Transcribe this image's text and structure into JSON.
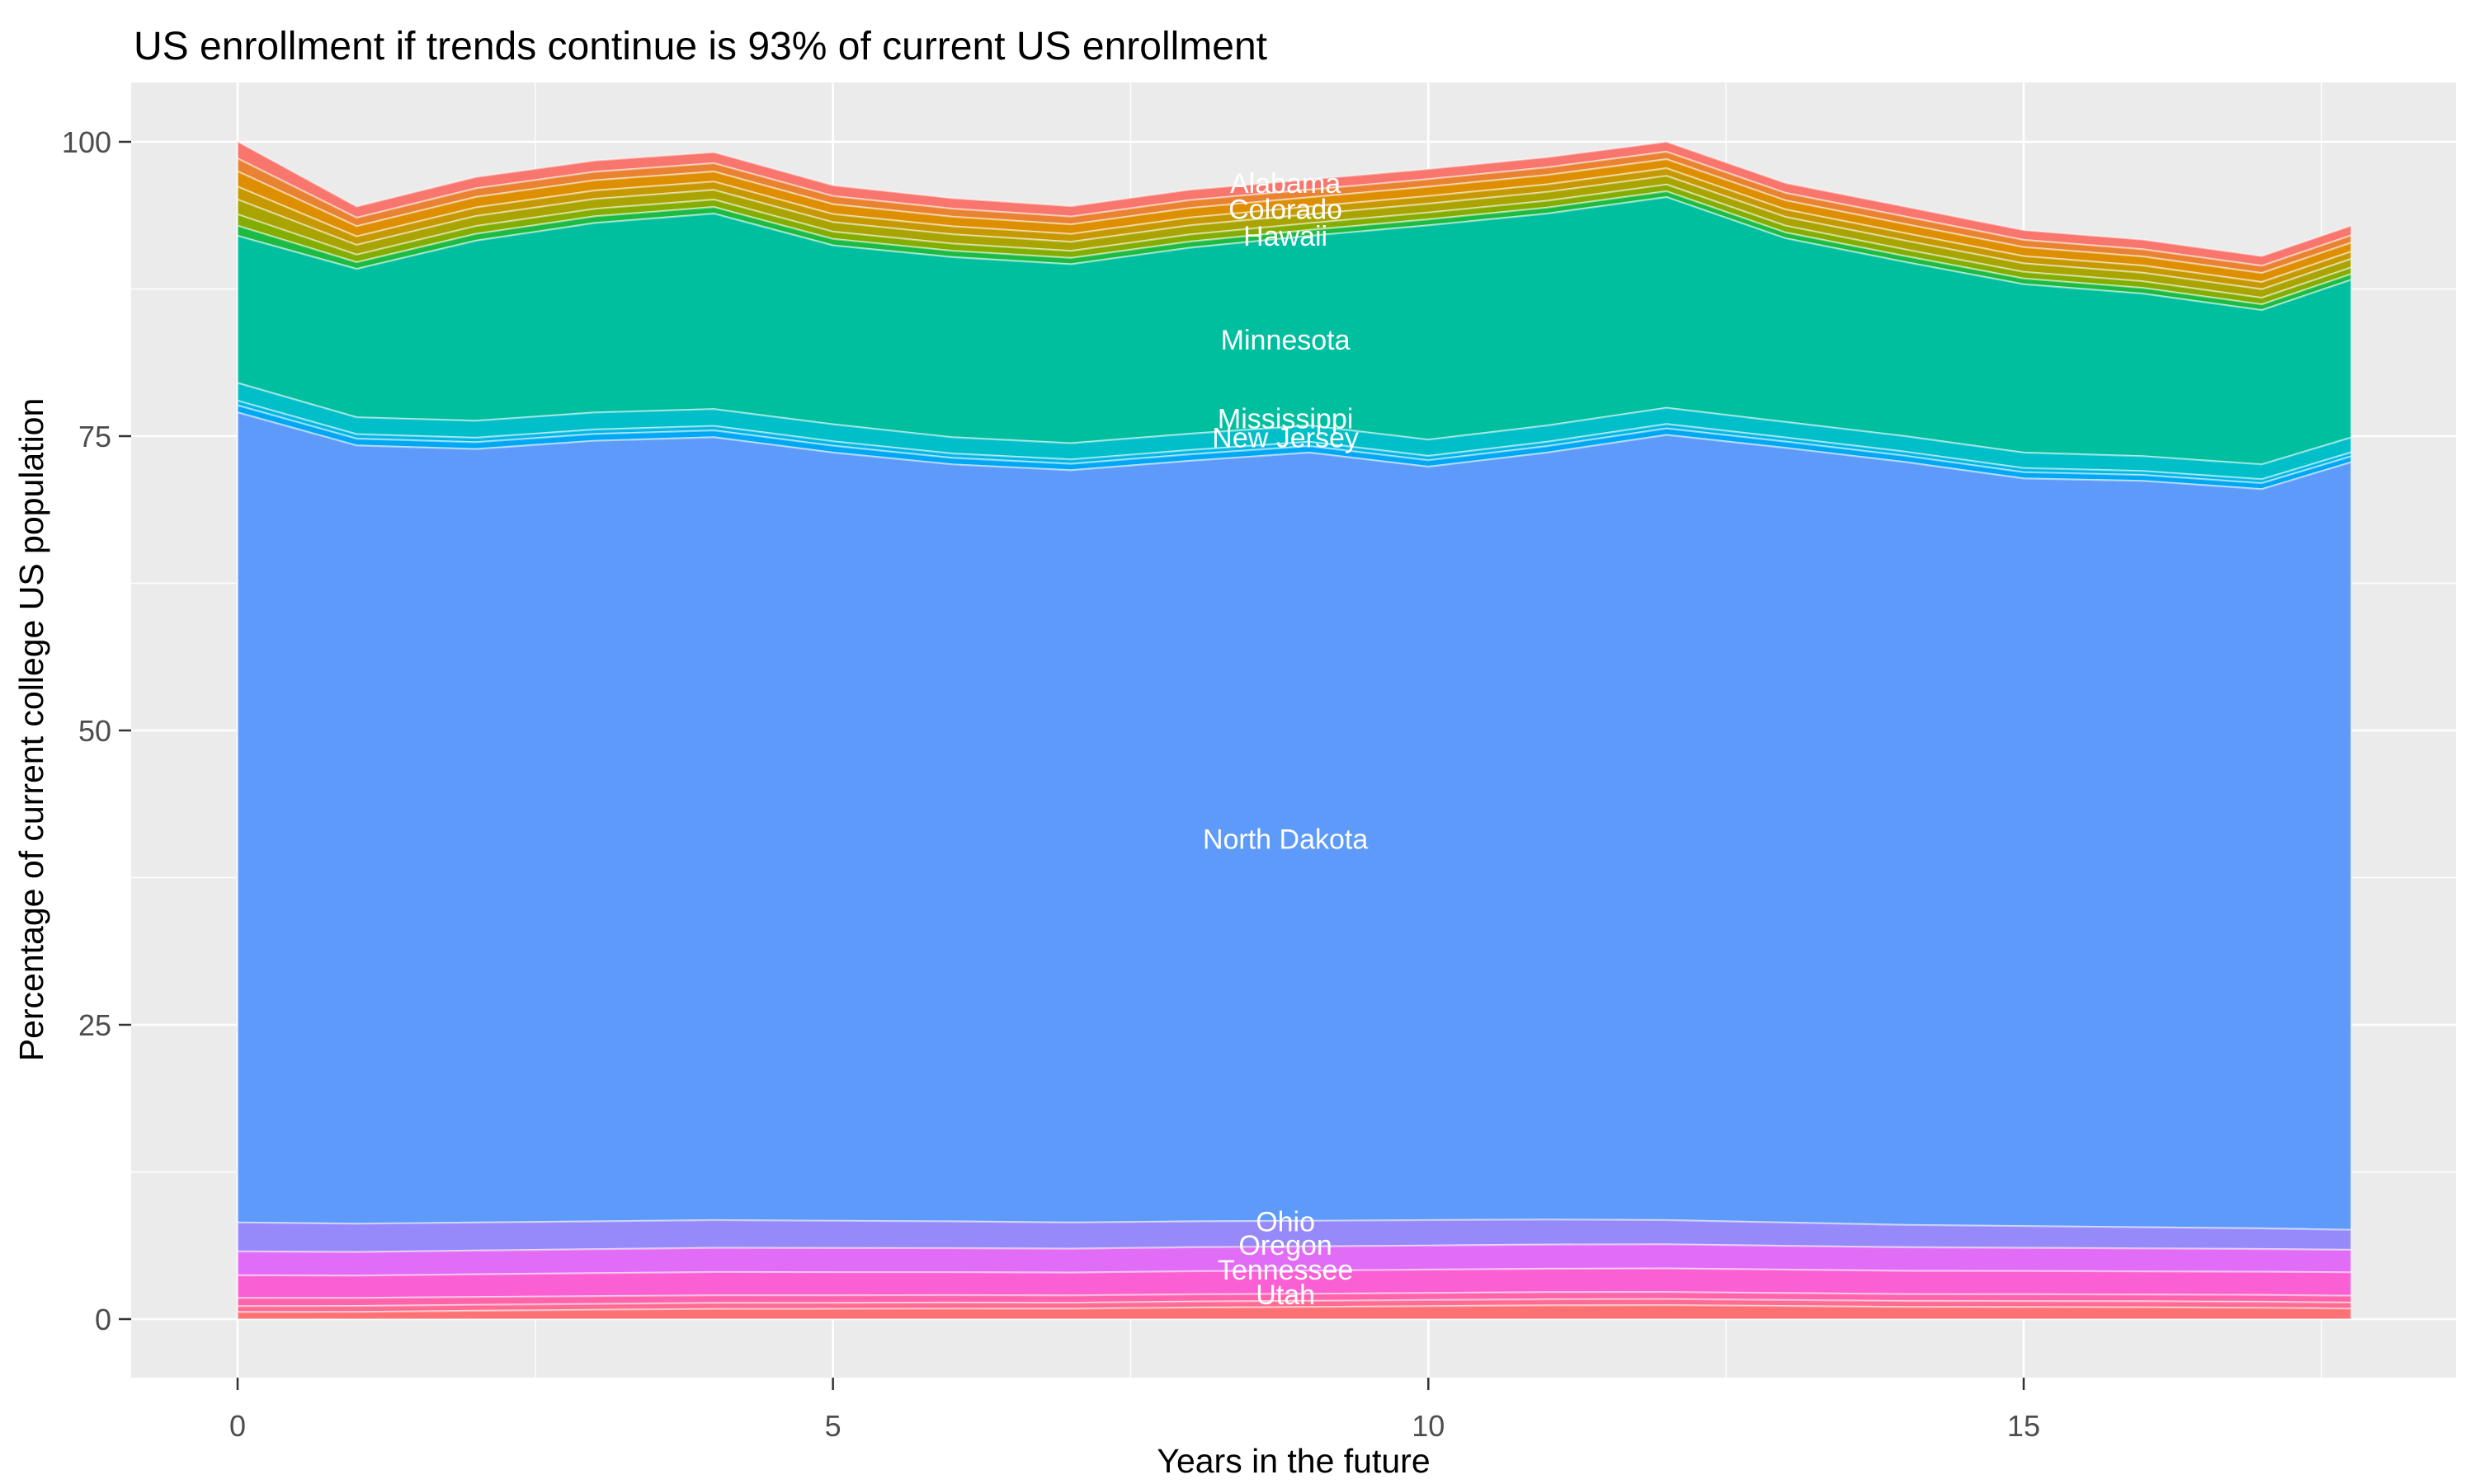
{
  "title": "US enrollment if trends continue is 93% of current US enrollment",
  "x_axis": {
    "label": "Years in the future",
    "ticks": [
      0,
      5,
      10,
      15
    ],
    "minor_ticks": [
      2.5,
      7.5,
      12.5,
      17.5
    ],
    "range": [
      0,
      17.75
    ]
  },
  "y_axis": {
    "label": "Percentage of current college US population",
    "ticks": [
      0,
      25,
      50,
      75,
      100
    ],
    "minor_ticks": [
      12.5,
      37.5,
      62.5,
      87.5
    ],
    "range": [
      0,
      100
    ]
  },
  "colors": {
    "panel_bg": "#EBEBEB",
    "grid": "#FFFFFF",
    "tick_label": "#4D4D4D",
    "tick_mark": "#333333",
    "band_label": "#FFFFFF",
    "band_separator": "rgba(255,255,255,0.45)"
  },
  "chart_data": {
    "type": "area",
    "stacked": true,
    "title": "US enrollment if trends continue is 93% of current US enrollment",
    "xlabel": "Years in the future",
    "ylabel": "Percentage of current college US population",
    "xlim": [
      0,
      17.75
    ],
    "ylim": [
      0,
      100
    ],
    "grid": true,
    "legend": false,
    "x": [
      0,
      1,
      2,
      3,
      4,
      5,
      6,
      7,
      8,
      9,
      10,
      11,
      12,
      13,
      14,
      15,
      16,
      17,
      17.75
    ],
    "series": [
      {
        "name": "Alabama",
        "color": "#F8766D",
        "label": {
          "x": 8.8,
          "y": 96.5
        },
        "values": [
          1.43,
          0.95,
          0.96,
          0.95,
          0.93,
          0.91,
          0.89,
          0.88,
          0.88,
          0.86,
          0.86,
          0.86,
          0.84,
          0.84,
          0.84,
          0.82,
          0.82,
          0.82,
          0.82
        ]
      },
      {
        "name": "",
        "color": "#EA8331",
        "label": null,
        "values": [
          1.09,
          0.72,
          0.73,
          0.72,
          0.71,
          0.69,
          0.68,
          0.67,
          0.67,
          0.65,
          0.65,
          0.65,
          0.64,
          0.64,
          0.64,
          0.62,
          0.62,
          0.62,
          0.62
        ]
      },
      {
        "name": "Colorado",
        "color": "#DE8F00",
        "label": {
          "x": 8.8,
          "y": 94.3
        },
        "values": [
          1.31,
          0.87,
          0.89,
          0.87,
          0.85,
          0.84,
          0.82,
          0.81,
          0.81,
          0.79,
          0.79,
          0.79,
          0.77,
          0.77,
          0.77,
          0.76,
          0.76,
          0.76,
          0.76
        ]
      },
      {
        "name": "",
        "color": "#C69900",
        "label": null,
        "values": [
          1.09,
          0.72,
          0.73,
          0.72,
          0.71,
          0.69,
          0.68,
          0.67,
          0.67,
          0.65,
          0.65,
          0.65,
          0.64,
          0.64,
          0.64,
          0.62,
          0.62,
          0.62,
          0.62
        ]
      },
      {
        "name": "Hawaii",
        "color": "#A9A400",
        "label": {
          "x": 8.8,
          "y": 92.0
        },
        "values": [
          1.26,
          0.83,
          0.85,
          0.83,
          0.82,
          0.8,
          0.79,
          0.77,
          0.77,
          0.75,
          0.75,
          0.75,
          0.74,
          0.74,
          0.74,
          0.72,
          0.72,
          0.72,
          0.72
        ]
      },
      {
        "name": "",
        "color": "#83AD00",
        "label": null,
        "values": [
          0.97,
          0.64,
          0.66,
          0.64,
          0.63,
          0.62,
          0.61,
          0.6,
          0.6,
          0.58,
          0.58,
          0.58,
          0.57,
          0.57,
          0.57,
          0.56,
          0.56,
          0.56,
          0.56
        ]
      },
      {
        "name": "",
        "color": "#1CBB44",
        "label": null,
        "values": [
          0.86,
          0.57,
          0.58,
          0.57,
          0.56,
          0.55,
          0.54,
          0.53,
          0.53,
          0.51,
          0.51,
          0.51,
          0.5,
          0.5,
          0.5,
          0.49,
          0.49,
          0.49,
          0.49
        ]
      },
      {
        "name": "Minnesota",
        "color": "#00BF9F",
        "label": {
          "x": 8.8,
          "y": 83.2
        },
        "values": [
          12.5,
          12.6,
          15.3,
          16.1,
          16.6,
          15.2,
          15.3,
          15.2,
          15.8,
          16.1,
          18.2,
          18.0,
          17.9,
          15.6,
          14.8,
          14.3,
          13.8,
          13.1,
          13.4
        ]
      },
      {
        "name": "Mississippi",
        "color": "#00BFC9",
        "label": {
          "x": 8.8,
          "y": 76.5
        },
        "values": [
          1.5,
          1.44,
          1.44,
          1.44,
          1.44,
          1.44,
          1.38,
          1.38,
          1.38,
          1.38,
          1.38,
          1.38,
          1.38,
          1.32,
          1.32,
          1.32,
          1.26,
          1.26,
          1.26
        ]
      },
      {
        "name": "",
        "color": "#00B7E4",
        "label": null,
        "values": [
          0.4,
          0.38,
          0.38,
          0.38,
          0.38,
          0.38,
          0.37,
          0.37,
          0.37,
          0.37,
          0.37,
          0.37,
          0.37,
          0.35,
          0.35,
          0.35,
          0.34,
          0.34,
          0.34
        ]
      },
      {
        "name": "New Jersey",
        "color": "#00A8F4",
        "label": {
          "x": 8.8,
          "y": 74.9
        },
        "values": [
          0.6,
          0.58,
          0.58,
          0.58,
          0.58,
          0.58,
          0.55,
          0.55,
          0.55,
          0.55,
          0.55,
          0.55,
          0.55,
          0.53,
          0.53,
          0.53,
          0.5,
          0.5,
          0.5
        ]
      },
      {
        "name": "North Dakota",
        "color": "#5D9AFA",
        "label": {
          "x": 8.8,
          "y": 40.8
        },
        "values": [
          68.8,
          66.1,
          65.7,
          66.3,
          66.5,
          65.25,
          64.3,
          63.9,
          64.6,
          65.25,
          64.0,
          65.15,
          66.7,
          65.8,
          64.8,
          63.5,
          63.4,
          62.8,
          65.2
        ]
      },
      {
        "name": "Ohio",
        "color": "#9689FA",
        "label": {
          "x": 8.8,
          "y": 8.3
        },
        "values": [
          2.46,
          2.4,
          2.38,
          2.36,
          2.35,
          2.32,
          2.28,
          2.22,
          2.2,
          2.18,
          2.15,
          2.12,
          2.05,
          1.98,
          1.9,
          1.85,
          1.8,
          1.75,
          1.7
        ]
      },
      {
        "name": "Oregon",
        "color": "#E16DF7",
        "label": {
          "x": 8.8,
          "y": 6.3
        },
        "values": [
          2.03,
          2.01,
          2.02,
          2.04,
          2.06,
          2.05,
          2.04,
          2.03,
          2.04,
          2.05,
          2.05,
          2.06,
          2.05,
          2.02,
          2.0,
          1.97,
          1.95,
          1.93,
          1.91
        ]
      },
      {
        "name": "Tennessee",
        "color": "#FA60D3",
        "label": {
          "x": 8.8,
          "y": 4.2
        },
        "values": [
          1.92,
          1.9,
          1.92,
          1.95,
          1.97,
          1.96,
          1.95,
          1.94,
          1.96,
          1.97,
          1.98,
          1.99,
          2.0,
          1.99,
          1.98,
          1.97,
          1.96,
          1.97,
          1.99
        ]
      },
      {
        "name": "Utah",
        "color": "#FF63AC",
        "label": {
          "x": 8.8,
          "y": 2.1
        },
        "values": [
          0.7,
          0.68,
          0.67,
          0.66,
          0.65,
          0.64,
          0.63,
          0.62,
          0.61,
          0.6,
          0.6,
          0.6,
          0.6,
          0.59,
          0.58,
          0.58,
          0.58,
          0.58,
          0.58
        ]
      },
      {
        "name": "",
        "color": "#FF6B92",
        "label": null,
        "values": [
          0.5,
          0.5,
          0.5,
          0.5,
          0.51,
          0.51,
          0.51,
          0.51,
          0.51,
          0.52,
          0.52,
          0.52,
          0.52,
          0.51,
          0.51,
          0.51,
          0.51,
          0.51,
          0.51
        ]
      },
      {
        "name": "",
        "color": "#FD7175",
        "label": null,
        "values": [
          0.6,
          0.61,
          0.71,
          0.79,
          0.86,
          0.87,
          0.89,
          0.88,
          0.98,
          1.03,
          1.1,
          1.16,
          1.18,
          1.11,
          1.03,
          1.02,
          1.0,
          0.96,
          0.89
        ]
      }
    ]
  }
}
